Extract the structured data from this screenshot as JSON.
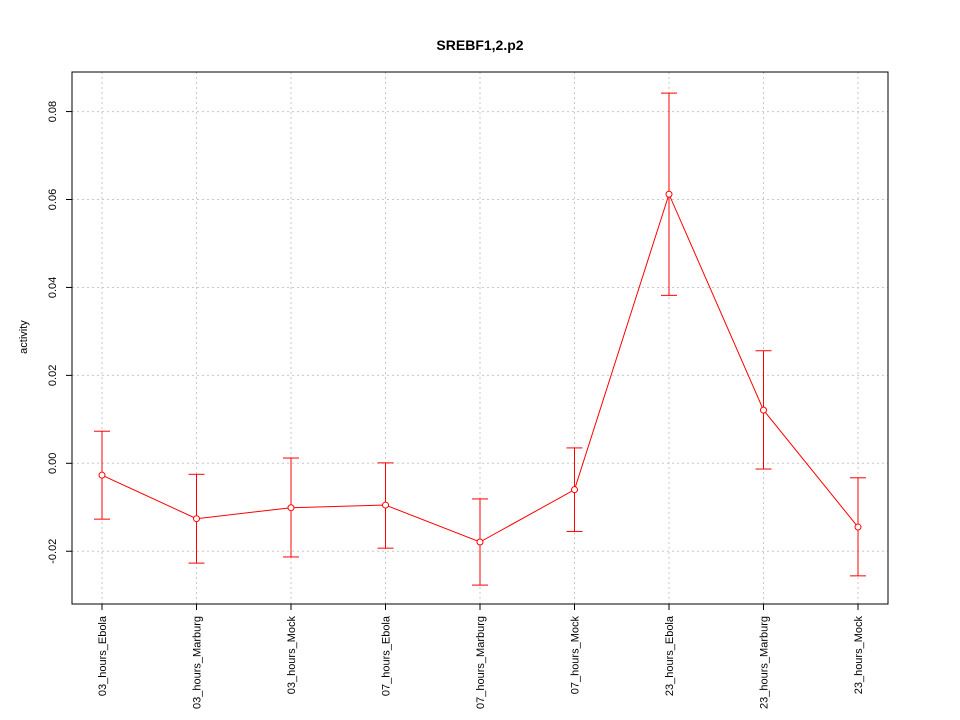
{
  "chart_data": {
    "type": "line",
    "title": "SREBF1,2.p2",
    "xlabel": "",
    "ylabel": "activity",
    "categories": [
      "03_hours_Ebola",
      "03_hours_Marburg",
      "03_hours_Mock",
      "07_hours_Ebola",
      "07_hours_Marburg",
      "07_hours_Mock",
      "23_hours_Ebola",
      "23_hours_Marburg",
      "23_hours_Mock"
    ],
    "series": [
      {
        "values": [
          -0.0027,
          -0.0126,
          -0.0101,
          -0.0095,
          -0.0179,
          -0.006,
          0.0612,
          0.0121,
          -0.0145
        ],
        "err_low": [
          -0.0127,
          -0.0227,
          -0.0213,
          -0.0193,
          -0.0277,
          -0.0155,
          0.0382,
          -0.0013,
          -0.0256
        ],
        "err_high": [
          0.0073,
          -0.0025,
          0.0012,
          0.0001,
          -0.0081,
          0.0035,
          0.0842,
          0.0256,
          -0.0033
        ]
      }
    ],
    "ylim": [
      -0.032,
      0.089
    ],
    "yticks": [
      -0.02,
      0.0,
      0.02,
      0.04,
      0.06,
      0.08
    ],
    "ytick_labels": [
      "-0.02",
      "0.00",
      "0.02",
      "0.04",
      "0.06",
      "0.08"
    ],
    "grid": true,
    "colors": {
      "series": "#ff0000",
      "grid": "#c8c8c8",
      "axis": "#000000"
    }
  }
}
